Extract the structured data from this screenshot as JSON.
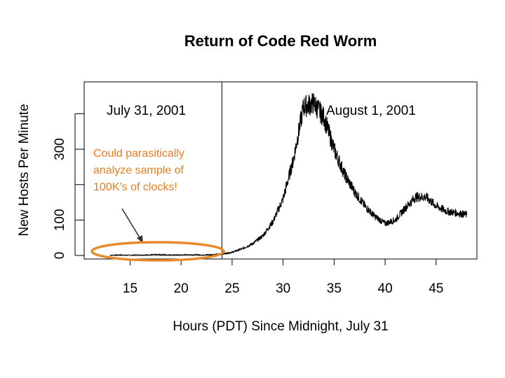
{
  "chart_data": {
    "type": "line",
    "title": "Return of Code Red Worm",
    "xlabel": "Hours (PDT) Since Midnight, July 31",
    "ylabel": "New Hosts Per Minute",
    "xlim": [
      10.5,
      49
    ],
    "ylim": [
      -10,
      490
    ],
    "x_ticks": [
      15,
      20,
      25,
      30,
      35,
      40,
      45
    ],
    "y_tick_labels": [
      {
        "value": 0,
        "label": "0"
      },
      {
        "value": 100,
        "label": "100"
      },
      {
        "value": 300,
        "label": "300"
      }
    ],
    "y_unlabeled_ticks": [
      200,
      400
    ],
    "divider_x": 24,
    "date_labels": [
      "July 31, 2001",
      "August 1, 2001"
    ],
    "series": [
      {
        "x": [
          13,
          14,
          15,
          16,
          17,
          18,
          19,
          20,
          21,
          22,
          23,
          24,
          25,
          26,
          27,
          28,
          29,
          30,
          31,
          32,
          33,
          34,
          35,
          36,
          37,
          38,
          39,
          40,
          41,
          42,
          43,
          44,
          45,
          46,
          47,
          48
        ],
        "y": [
          0,
          1,
          0,
          1,
          1,
          2,
          1,
          1,
          2,
          1,
          2,
          4,
          9,
          19,
          33,
          55,
          95,
          160,
          270,
          420,
          430,
          390,
          300,
          230,
          180,
          140,
          110,
          90,
          100,
          135,
          165,
          165,
          140,
          125,
          120,
          115
        ]
      }
    ]
  },
  "annotation": {
    "text_lines": [
      "Could parasitically",
      "analyze sample of",
      "100K’s of clocks!"
    ],
    "color": "#e87d1e"
  },
  "colors": {
    "line": "#000000",
    "annotation": "#e87d1e",
    "ellipse": "#e8892b"
  }
}
